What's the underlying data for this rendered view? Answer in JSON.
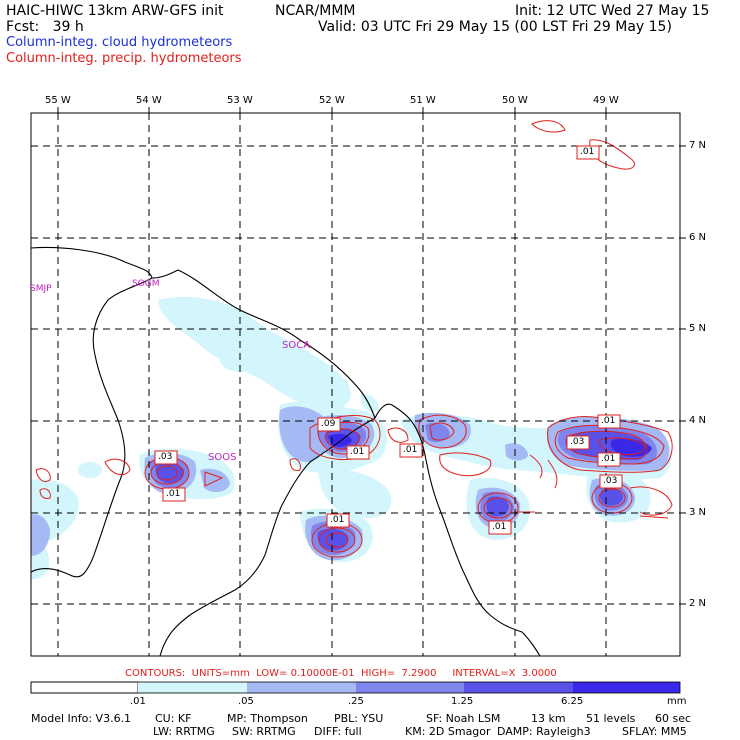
{
  "header": {
    "left_line1": "HAIC-HIWC 13km ARW-GFS init",
    "center_line1": "NCAR/MMM",
    "right_line1": "Init: 12 UTC Wed 27 May 15",
    "left_line2": "Fcst:   39 h",
    "right_line2": "Valid: 03 UTC Fri 29 May 15 (00 LST Fri 29 May 15)",
    "field_cloud": "Column-integ. cloud hydrometeors",
    "field_precip": "Column-integ. precip. hydrometeors"
  },
  "map": {
    "lon_labels": [
      "55 W",
      "54 W",
      "53 W",
      "52 W",
      "51 W",
      "50 W",
      "49 W"
    ],
    "lat_labels": [
      "7 N",
      "6 N",
      "5 N",
      "4 N",
      "3 N",
      "2 N"
    ],
    "stations": [
      "SMJP",
      "SOGM",
      "SOCA",
      "SOOS"
    ],
    "contour_labels": [
      ".01",
      ".09",
      ".01",
      ".01",
      ".03",
      ".01",
      ".01",
      ".01",
      ".03",
      ".01",
      ".03",
      ".01"
    ],
    "colors": {
      "cloud_1": "#d2f6fc",
      "cloud_2": "#a5b9f5",
      "cloud_3": "#7f85ec",
      "cloud_4": "#5a52e8",
      "cloud_5": "#3a28ea",
      "contour": "#e0201c"
    }
  },
  "contours_info": "CONTOURS:  UNITS=mm  LOW= 0.10000E-01  HIGH=  7.2900     INTERVAL=X  3.0000",
  "colorbar": {
    "ticks": [
      ".01",
      ".05",
      ".25",
      "1.25",
      "6.25"
    ],
    "unit": "mm",
    "colors": [
      "#ffffff",
      "#d2f6fc",
      "#a5b9f5",
      "#7f85ec",
      "#5a52e8",
      "#3a28ea"
    ]
  },
  "footer": {
    "line1": [
      "Model Info: V3.6.1",
      "CU: KF",
      "MP: Thompson",
      "PBL: YSU",
      "SF: Noah LSM",
      "13 km",
      "51 levels",
      "60 sec"
    ],
    "line2": [
      "LW: RRTMG",
      "SW: RRTMG",
      "DIFF: full",
      "KM: 2D Smagor",
      "DAMP: Rayleigh3",
      "SFLAY: MM5"
    ]
  }
}
